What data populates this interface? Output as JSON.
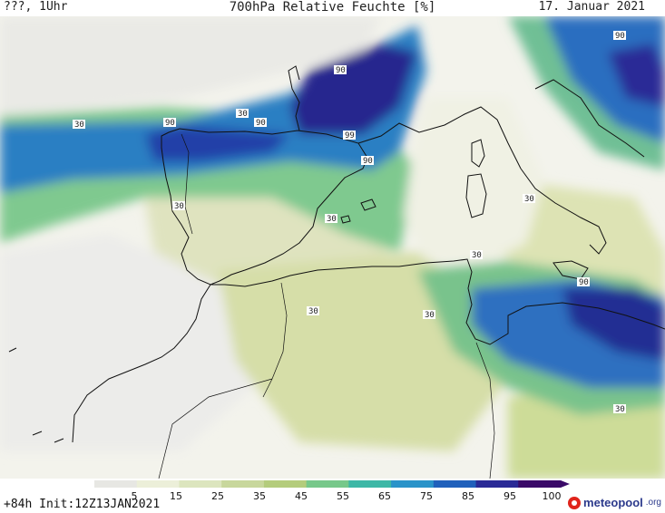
{
  "header": {
    "left_label": "???, 1Uhr",
    "title": "700hPa Relative Feuchte [%]",
    "date": "17. Januar 2021"
  },
  "contour_labels": {
    "a": "30",
    "b": "90",
    "c": "30",
    "d": "90",
    "e": "90",
    "f": "99",
    "g": "90",
    "h": "30",
    "i": "30",
    "j": "90",
    "k": "30",
    "l": "30",
    "m": "30",
    "n": "90",
    "o": "30",
    "p": "30"
  },
  "colorbar": {
    "ticks": [
      "5",
      "15",
      "25",
      "35",
      "45",
      "55",
      "65",
      "75",
      "85",
      "95",
      "100"
    ],
    "colors": [
      "#e7e7e3",
      "#ecefd9",
      "#dce5be",
      "#c8d79c",
      "#b4cc7c",
      "#77c88a",
      "#3db7a6",
      "#2a93c9",
      "#2060bb",
      "#2a2a96",
      "#3a0a68"
    ]
  },
  "footer": {
    "run_info": "+84h Init:12Z13JAN2021",
    "brand_name": "meteopool",
    "brand_tld": ".org"
  }
}
